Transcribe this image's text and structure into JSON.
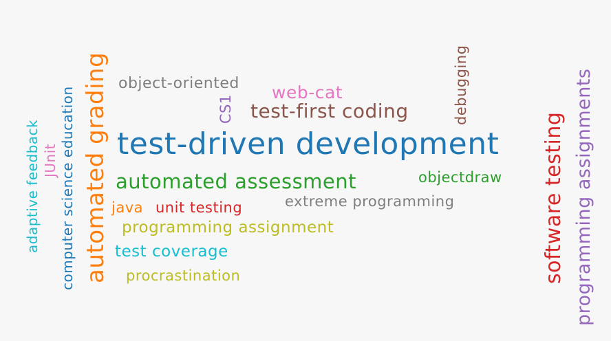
{
  "cloud": {
    "words": [
      {
        "text": "test-driven development",
        "color": "#1f77b4"
      },
      {
        "text": "automated grading",
        "color": "#ff7f0e"
      },
      {
        "text": "automated assessment",
        "color": "#2ca02c"
      },
      {
        "text": "test-first coding",
        "color": "#8c564b"
      },
      {
        "text": "software testing",
        "color": "#d62728"
      },
      {
        "text": "programming assignments",
        "color": "#9467bd"
      },
      {
        "text": "computer science education",
        "color": "#1f77b4"
      },
      {
        "text": "object-oriented",
        "color": "#7f7f7f"
      },
      {
        "text": "web-cat",
        "color": "#e377c2"
      },
      {
        "text": "CS1",
        "color": "#9467bd"
      },
      {
        "text": "debugging",
        "color": "#8c564b"
      },
      {
        "text": "objectdraw",
        "color": "#2ca02c"
      },
      {
        "text": "extreme programming",
        "color": "#7f7f7f"
      },
      {
        "text": "java",
        "color": "#ff7f0e"
      },
      {
        "text": "unit testing",
        "color": "#d62728"
      },
      {
        "text": "programming assignment",
        "color": "#bcbd22"
      },
      {
        "text": "test coverage",
        "color": "#17becf"
      },
      {
        "text": "procrastination",
        "color": "#bcbd22"
      },
      {
        "text": "adaptive feedback",
        "color": "#17becf"
      },
      {
        "text": "JUnit",
        "color": "#e377c2"
      }
    ]
  }
}
